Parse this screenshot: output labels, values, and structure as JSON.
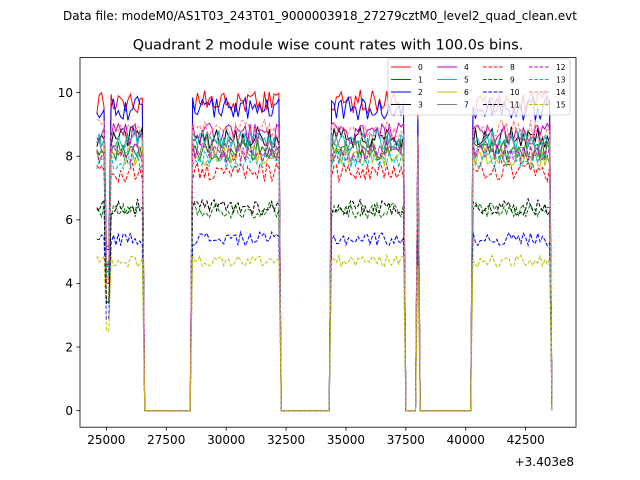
{
  "chart_data": {
    "type": "line",
    "suptitle": "Data file: modeM0/AS1T03_243T01_9000003918_27279cztM0_level2_quad_clean.evt",
    "title": "Quadrant 2 module wise count rates with 100.0s bins.",
    "xlabel": "",
    "ylabel": "",
    "x_offset_label": "+3.403e8",
    "xlim": [
      23900,
      44600
    ],
    "ylim": [
      -0.52,
      11.1
    ],
    "xticks": [
      25000,
      27500,
      30000,
      32500,
      35000,
      37500,
      40000,
      42500
    ],
    "yticks": [
      0,
      2,
      4,
      6,
      8,
      10
    ],
    "legend_position": "top-right",
    "segments": [
      {
        "start": 24600,
        "end": 25400,
        "drops": [
          {
            "x": 25050,
            "y": 4.8
          }
        ]
      },
      {
        "start": 25400,
        "end": 26550,
        "drops": []
      },
      {
        "start": 28550,
        "end": 31300,
        "drops": []
      },
      {
        "start": 31300,
        "end": 32200,
        "drops": []
      },
      {
        "start": 34400,
        "end": 37450,
        "drops": []
      },
      {
        "start": 37950,
        "end": 38050,
        "drops": []
      },
      {
        "start": 40250,
        "end": 43500,
        "drops": []
      }
    ],
    "gaps": [
      [
        25400,
        25450
      ],
      [
        26550,
        28550
      ],
      [
        32200,
        34400
      ],
      [
        37450,
        37950
      ],
      [
        38050,
        40250
      ]
    ],
    "series": [
      {
        "name": "0",
        "level": 9.7,
        "color": "#ff0000",
        "dash": "solid"
      },
      {
        "name": "1",
        "level": 8.2,
        "color": "#008000",
        "dash": "solid"
      },
      {
        "name": "2",
        "level": 9.5,
        "color": "#0000ff",
        "dash": "solid"
      },
      {
        "name": "3",
        "level": 8.6,
        "color": "#000000",
        "dash": "solid"
      },
      {
        "name": "4",
        "level": 8.7,
        "color": "#bf00bf",
        "dash": "solid"
      },
      {
        "name": "5",
        "level": 8.5,
        "color": "#00bfbf",
        "dash": "solid"
      },
      {
        "name": "6",
        "level": 8.0,
        "color": "#bfbf00",
        "dash": "solid"
      },
      {
        "name": "7",
        "level": 8.3,
        "color": "#808080",
        "dash": "solid"
      },
      {
        "name": "8",
        "level": 7.5,
        "color": "#ff0000",
        "dash": "dashed"
      },
      {
        "name": "9",
        "level": 6.3,
        "color": "#008000",
        "dash": "dashed"
      },
      {
        "name": "10",
        "level": 5.4,
        "color": "#0000ff",
        "dash": "dashed"
      },
      {
        "name": "11",
        "level": 6.4,
        "color": "#000000",
        "dash": "dashed"
      },
      {
        "name": "12",
        "level": 8.1,
        "color": "#bf00bf",
        "dash": "dashed"
      },
      {
        "name": "13",
        "level": 7.9,
        "color": "#00bfbf",
        "dash": "dashed"
      },
      {
        "name": "14",
        "level": 8.8,
        "color": "#ff8080",
        "dash": "dashed"
      },
      {
        "name": "15",
        "level": 4.7,
        "color": "#bfbf00",
        "dash": "dashed"
      }
    ]
  }
}
